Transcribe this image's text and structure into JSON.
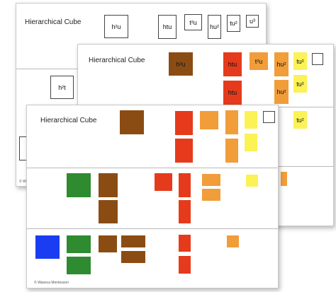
{
  "sheets": {
    "back": {
      "title": "Hierarchical Cube",
      "cards": {
        "h2u": "h²u",
        "htu": "htu",
        "t2u": "t²u",
        "hu2": "hu²",
        "tu2": "tu²",
        "u3": "u³",
        "h2t": "h²t"
      },
      "copyright": "© Waseca"
    },
    "middle": {
      "title": "Hierarchical Cube",
      "cards": {
        "h2u": "h²u",
        "htu_a": "htu",
        "htu_b": "htu",
        "t2u": "t²u",
        "hu2_a": "hu²",
        "hu2_b": "hu²",
        "tu2_a": "tu²",
        "tu2_b": "tu²",
        "tu2_c": "tu²"
      }
    },
    "front": {
      "title": "Hierarchical Cube",
      "copyright": "© Waseca Montessori"
    }
  },
  "colors": {
    "blue": "#1a3df2",
    "green": "#2e8b2f",
    "brown": "#8b4c14",
    "red": "#e53b1c",
    "orange": "#f19d3a",
    "yellow": "#fbf256"
  }
}
